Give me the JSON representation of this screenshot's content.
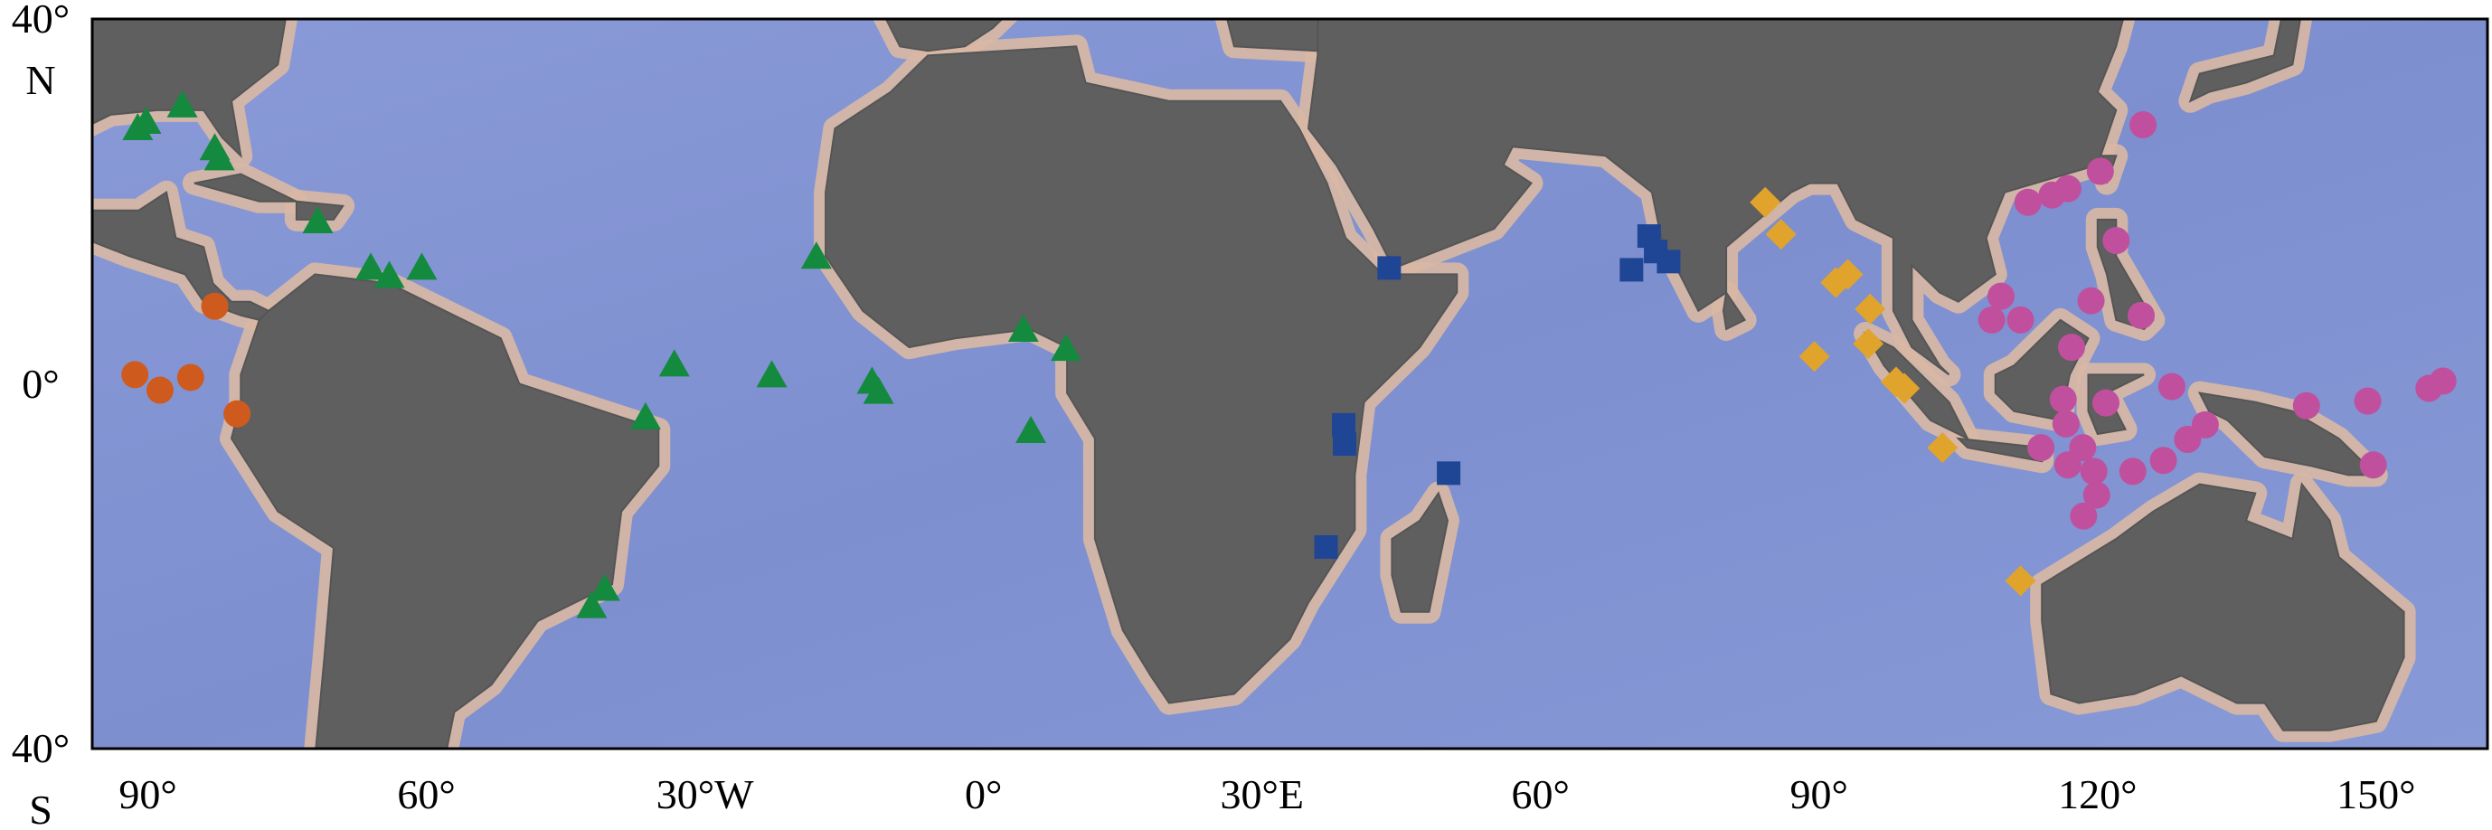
{
  "chart_data": {
    "type": "scatter",
    "xlim": [
      -96,
      162
    ],
    "ylim": [
      -40,
      40
    ],
    "xticks": [
      {
        "value": -90,
        "label": "90°"
      },
      {
        "value": -60,
        "label": "60°"
      },
      {
        "value": -30,
        "label": "30°W"
      },
      {
        "value": 0,
        "label": "0°"
      },
      {
        "value": 30,
        "label": "30°E"
      },
      {
        "value": 60,
        "label": "60°"
      },
      {
        "value": 90,
        "label": "90°"
      },
      {
        "value": 120,
        "label": "120°"
      },
      {
        "value": 150,
        "label": "150°"
      }
    ],
    "yticks": [
      {
        "value": 40,
        "label": "40°\nN"
      },
      {
        "value": 0,
        "label": "0°"
      },
      {
        "value": -40,
        "label": "40°\nS"
      }
    ],
    "series": [
      {
        "color": "#cf5a1e",
        "marker": "circle",
        "x": [
          -82.8,
          -91.4,
          -88.7,
          -85.4,
          -80.4
        ],
        "y": [
          8.5,
          1.0,
          -0.7,
          0.7,
          -3.3
        ]
      },
      {
        "color": "#138a3e",
        "marker": "triangle",
        "x": [
          -91.1,
          -90.2,
          -86.3,
          -82.8,
          -82.3,
          -71.7,
          -66.0,
          -64.0,
          -60.5,
          -18.0,
          -33.3,
          -22.8,
          -12.0,
          -11.3,
          -36.4,
          4.3,
          8.9,
          5.1,
          -40.8,
          -42.2
        ],
        "y": [
          28.0,
          28.7,
          30.5,
          25.8,
          24.7,
          17.8,
          12.7,
          11.8,
          12.7,
          13.9,
          2.1,
          0.9,
          0.2,
          -0.9,
          -3.7,
          5.9,
          3.8,
          -5.2,
          -22.5,
          -24.4
        ]
      },
      {
        "color": "#1f4595",
        "marker": "square",
        "x": [
          43.7,
          71.7,
          72.4,
          69.8,
          73.8,
          38.8,
          38.9,
          50.1,
          36.9
        ],
        "y": [
          12.7,
          16.2,
          14.5,
          12.5,
          13.4,
          -4.5,
          -6.6,
          -9.8,
          -17.9
        ]
      },
      {
        "color": "#e0a42c",
        "marker": "diamond",
        "x": [
          84.2,
          85.9,
          91.8,
          93.1,
          95.5,
          95.3,
          89.5,
          98.3,
          99.2,
          103.3,
          111.7
        ],
        "y": [
          19.9,
          16.4,
          11.1,
          12.0,
          8.2,
          4.4,
          3.0,
          0.2,
          -0.5,
          -7.0,
          -21.6
        ]
      },
      {
        "color": "#c0509e",
        "marker": "circle",
        "x": [
          124.9,
          112.5,
          115.1,
          116.8,
          120.3,
          122.0,
          109.6,
          108.6,
          111.7,
          119.3,
          124.7,
          117.2,
          128.0,
          116.3,
          116.6,
          120.9,
          113.9,
          116.8,
          118.4,
          119.6,
          119.9,
          118.5,
          123.8,
          127.1,
          129.7,
          131.6,
          142.5,
          149.1,
          149.7,
          155.7,
          157.2
        ],
        "y": [
          28.4,
          19.9,
          20.7,
          21.4,
          23.3,
          15.7,
          9.6,
          7.0,
          7.0,
          9.1,
          7.5,
          4.0,
          -0.3,
          -1.7,
          -4.4,
          -2.1,
          -7.0,
          -8.9,
          -7.0,
          -9.6,
          -12.2,
          -14.5,
          -9.6,
          -8.4,
          -6.1,
          -4.5,
          -2.4,
          -1.9,
          -8.9,
          -0.5,
          0.3
        ]
      }
    ]
  }
}
